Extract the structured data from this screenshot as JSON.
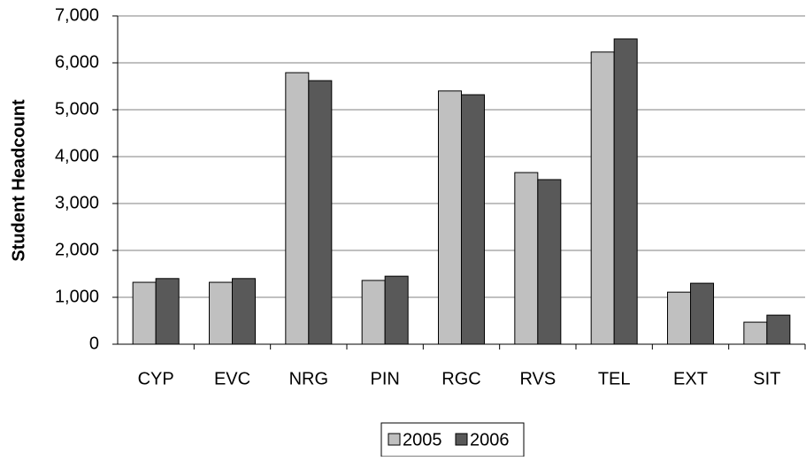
{
  "chart_data": {
    "type": "bar",
    "y_label": "Student Headcount",
    "categories": [
      "CYP",
      "EVC",
      "NRG",
      "PIN",
      "RGC",
      "RVS",
      "TEL",
      "EXT",
      "SIT"
    ],
    "series": [
      {
        "name": "2005",
        "color": "#c0c0c0",
        "values": [
          1320,
          1320,
          5790,
          1360,
          5400,
          3660,
          6230,
          1110,
          470
        ]
      },
      {
        "name": "2006",
        "color": "#595959",
        "values": [
          1400,
          1400,
          5620,
          1450,
          5320,
          3510,
          6510,
          1300,
          620
        ]
      }
    ],
    "ylim": [
      0,
      7000
    ],
    "yticks": [
      0,
      {
        "value": 1000,
        "label": "1,000"
      },
      {
        "value": 2000,
        "label": "2,000"
      },
      {
        "value": 3000,
        "label": "3,000"
      },
      {
        "value": 4000,
        "label": "4,000"
      },
      {
        "value": 5000,
        "label": "5,000"
      },
      {
        "value": 6000,
        "label": "6,000"
      },
      {
        "value": 7000,
        "label": "7,000"
      }
    ],
    "grid": true,
    "legend": "bottom"
  }
}
